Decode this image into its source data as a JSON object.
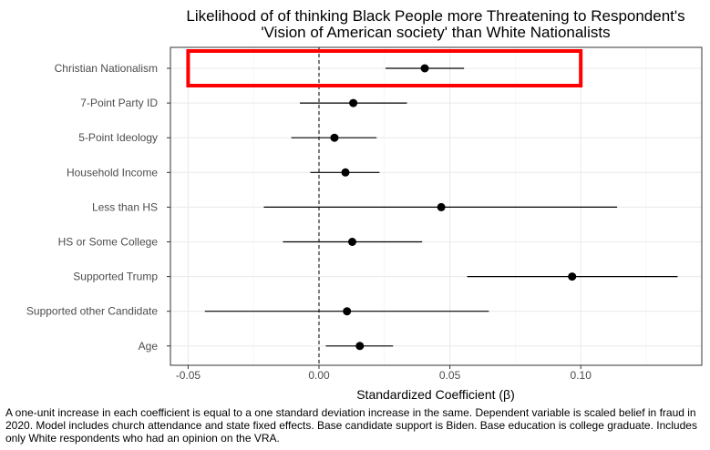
{
  "chart_data": {
    "type": "scatter",
    "subtype": "coefficient-plot",
    "title": [
      "Likelihood of of thinking Black People more Threatening to Respondent's",
      "'Vision of American society' than White Nationalists"
    ],
    "xlabel": "Standardized Coefficient (β)",
    "ylabel": "",
    "xlim": [
      -0.058,
      0.145
    ],
    "xticks": [
      -0.05,
      0.0,
      0.05,
      0.1
    ],
    "xtick_labels": [
      "-0.05",
      "0.00",
      "0.05",
      "0.10"
    ],
    "reference_line": 0,
    "grid": true,
    "highlight_color": "#ff0000",
    "highlighted_term": "Christian Nationalism",
    "terms": [
      {
        "label": "Christian Nationalism",
        "estimate": 0.0404,
        "low": 0.0254,
        "high": 0.0554
      },
      {
        "label": "7-Point Party ID",
        "estimate": 0.0131,
        "low": -0.0073,
        "high": 0.0336
      },
      {
        "label": "5-Point Ideology",
        "estimate": 0.0059,
        "low": -0.0106,
        "high": 0.022
      },
      {
        "label": "Household Income",
        "estimate": 0.0101,
        "low": -0.0033,
        "high": 0.0231
      },
      {
        "label": "Less than HS",
        "estimate": 0.0467,
        "low": -0.0211,
        "high": 0.1139
      },
      {
        "label": "HS or Some College",
        "estimate": 0.0127,
        "low": -0.0138,
        "high": 0.0394
      },
      {
        "label": "Supported Trump",
        "estimate": 0.0967,
        "low": 0.0566,
        "high": 0.137
      },
      {
        "label": "Supported other Candidate",
        "estimate": 0.0107,
        "low": -0.0436,
        "high": 0.0649
      },
      {
        "label": "Age",
        "estimate": 0.0156,
        "low": 0.0026,
        "high": 0.0283
      }
    ]
  },
  "caption": "A one-unit increase in each coefficient is equal to a one standard deviation increase in the same. Dependent variable is scaled belief in fraud in 2020. Model includes church attendance and state fixed effects. Base candidate support is Biden. Base education is college graduate. Includes only White respondents who had an opinion on the VRA."
}
